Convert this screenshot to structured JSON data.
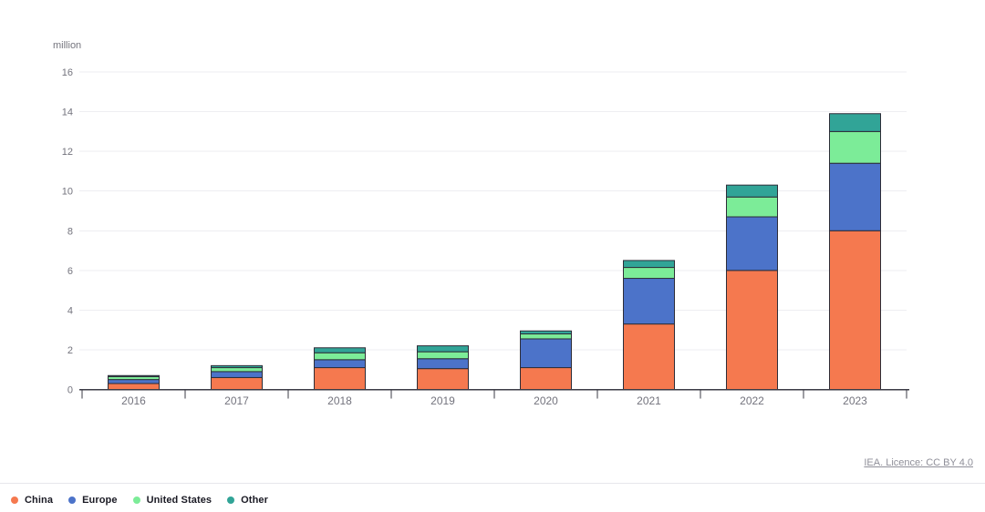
{
  "chart_data": {
    "type": "bar",
    "stacked": true,
    "title": "",
    "unit_label": "million",
    "xlabel": "",
    "ylabel": "million",
    "categories": [
      "2016",
      "2017",
      "2018",
      "2019",
      "2020",
      "2021",
      "2022",
      "2023"
    ],
    "series": [
      {
        "name": "China",
        "color": "#F5794F",
        "values": [
          0.3,
          0.6,
          1.1,
          1.05,
          1.1,
          3.3,
          6.0,
          8.0
        ]
      },
      {
        "name": "Europe",
        "color": "#4C73C9",
        "values": [
          0.2,
          0.3,
          0.4,
          0.5,
          1.45,
          2.3,
          2.7,
          3.4
        ]
      },
      {
        "name": "United States",
        "color": "#7CEC98",
        "values": [
          0.15,
          0.2,
          0.35,
          0.35,
          0.25,
          0.55,
          1.0,
          1.6
        ]
      },
      {
        "name": "Other",
        "color": "#31A497",
        "values": [
          0.05,
          0.1,
          0.25,
          0.3,
          0.15,
          0.35,
          0.6,
          0.9
        ]
      }
    ],
    "totals": [
      0.7,
      1.2,
      2.1,
      2.2,
      2.95,
      6.5,
      10.3,
      13.9
    ],
    "y_ticks": [
      0,
      2,
      4,
      6,
      8,
      10,
      12,
      14,
      16
    ],
    "ylim": [
      0,
      16
    ],
    "grid": true,
    "legend_position": "bottom-left"
  },
  "footer": {
    "licence_link": "IEA. Licence: CC BY 4.0"
  },
  "colors": {
    "background": "#ffffff",
    "grid_line": "#eeeef1",
    "axis_line": "#3b3b45",
    "tick_label": "#73737d",
    "bar_stroke": "#2d2d38",
    "legend_text": "#1a1a24",
    "link_text": "#8f8f99",
    "divider": "#e7e7ec"
  }
}
